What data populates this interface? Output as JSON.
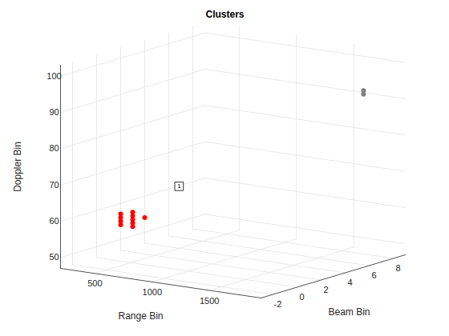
{
  "chart_data": {
    "type": "scatter3d",
    "title": "Clusters",
    "xlabel": "Range Bin",
    "ylabel": "Beam Bin",
    "zlabel": "Doppler Bin",
    "xlim": [
      200,
      1950
    ],
    "ylim": [
      -3,
      9
    ],
    "zlim": [
      47,
      103
    ],
    "xticks": [
      500,
      1000,
      1500
    ],
    "yticks": [
      -2,
      0,
      2,
      4,
      6,
      8
    ],
    "zticks": [
      50,
      60,
      70,
      80,
      90,
      100
    ],
    "grid": true,
    "marker": "o",
    "series": [
      {
        "color": "#ff0000",
        "x": [
          410,
          410,
          410,
          410,
          515,
          515,
          515,
          515,
          515,
          620
        ],
        "y": [
          0,
          0,
          0,
          0,
          0,
          0,
          0,
          0,
          0,
          0
        ],
        "z": [
          57,
          58,
          59,
          60,
          57,
          58,
          59,
          60,
          61,
          60
        ]
      },
      {
        "color": "#808080",
        "x": [
          1900,
          1900
        ],
        "y": [
          6,
          6
        ],
        "z": [
          94,
          95
        ]
      }
    ],
    "annotations": [
      {
        "text": "1",
        "x": 920,
        "y": 0,
        "z": 70
      }
    ]
  }
}
